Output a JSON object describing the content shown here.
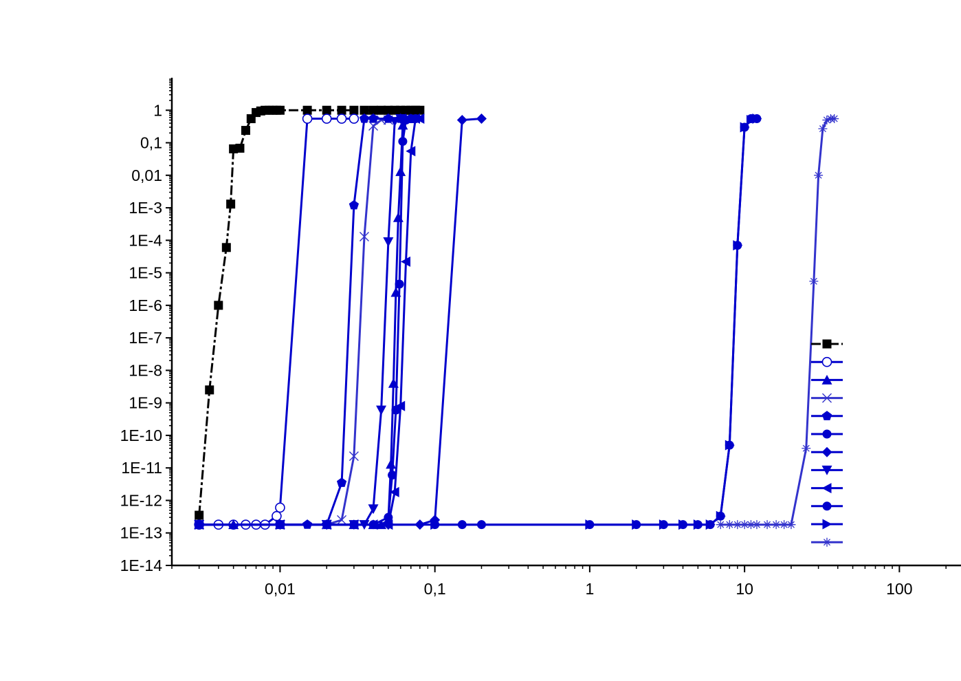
{
  "chart_data": {
    "type": "line",
    "title": "",
    "xlabel": "",
    "ylabel": "",
    "x_scale": "log",
    "y_scale": "log",
    "xlim": [
      0.002,
      250
    ],
    "ylim": [
      1e-14,
      10
    ],
    "x_ticks": [
      {
        "value": 0.01,
        "label": "0,01"
      },
      {
        "value": 0.1,
        "label": "0,1"
      },
      {
        "value": 1,
        "label": "1"
      },
      {
        "value": 10,
        "label": "10"
      },
      {
        "value": 100,
        "label": "100"
      }
    ],
    "y_ticks": [
      {
        "value": 1,
        "label": "1"
      },
      {
        "value": 0.1,
        "label": "0,1"
      },
      {
        "value": 0.01,
        "label": "0,01"
      },
      {
        "value": 0.001,
        "label": "1E-3"
      },
      {
        "value": 0.0001,
        "label": "1E-4"
      },
      {
        "value": 1e-05,
        "label": "1E-5"
      },
      {
        "value": 1e-06,
        "label": "1E-6"
      },
      {
        "value": 1e-07,
        "label": "1E-7"
      },
      {
        "value": 1e-08,
        "label": "1E-8"
      },
      {
        "value": 1e-09,
        "label": "1E-9"
      },
      {
        "value": 1e-10,
        "label": "1E-10"
      },
      {
        "value": 1e-11,
        "label": "1E-11"
      },
      {
        "value": 1e-12,
        "label": "1E-12"
      },
      {
        "value": 1e-13,
        "label": "1E-13"
      },
      {
        "value": 1e-14,
        "label": "1E-14"
      }
    ],
    "grid": false,
    "legend": {
      "position": "right",
      "show_names": false
    },
    "series": [
      {
        "marker": "square",
        "color": "#000000",
        "dashed": true,
        "x": [
          0.003,
          0.0035,
          0.004,
          0.0045,
          0.0048,
          0.005,
          0.0055,
          0.006,
          0.0065,
          0.007,
          0.0075,
          0.008,
          0.0085,
          0.009,
          0.0095,
          0.01,
          0.015,
          0.02,
          0.025,
          0.03,
          0.035,
          0.04,
          0.045,
          0.05,
          0.055,
          0.06,
          0.065,
          0.07,
          0.075,
          0.08
        ],
        "y": [
          3.5e-13,
          2.5e-09,
          1e-06,
          6e-05,
          0.0013,
          0.065,
          0.068,
          0.24,
          0.55,
          0.85,
          0.95,
          1,
          1,
          1,
          1,
          1,
          1,
          1,
          1,
          1,
          1,
          1,
          1,
          1,
          1,
          1,
          1,
          1,
          1,
          1
        ]
      },
      {
        "marker": "circle-open",
        "color": "#0000cc",
        "x": [
          0.003,
          0.004,
          0.005,
          0.006,
          0.007,
          0.008,
          0.0095,
          0.01,
          0.015,
          0.02,
          0.025,
          0.03
        ],
        "y": [
          1.8e-13,
          1.8e-13,
          1.8e-13,
          1.8e-13,
          1.8e-13,
          1.8e-13,
          3.3e-13,
          6e-13,
          0.55,
          0.55,
          0.55,
          0.55
        ]
      },
      {
        "marker": "triangle-up",
        "color": "#0000cc",
        "x": [
          0.003,
          0.005,
          0.01,
          0.02,
          0.03,
          0.04,
          0.045,
          0.05,
          0.052,
          0.054,
          0.056,
          0.058,
          0.06,
          0.062,
          0.065,
          0.07
        ],
        "y": [
          1.8e-13,
          1.8e-13,
          1.8e-13,
          1.8e-13,
          1.8e-13,
          1.8e-13,
          1.8e-13,
          2.5e-13,
          1.3e-11,
          4e-09,
          2.5e-06,
          0.0005,
          0.013,
          0.35,
          0.55,
          0.55
        ]
      },
      {
        "marker": "x",
        "color": "#3333cc",
        "x": [
          0.003,
          0.01,
          0.02,
          0.025,
          0.03,
          0.035,
          0.04,
          0.045,
          0.05
        ],
        "y": [
          1.8e-13,
          1.8e-13,
          1.8e-13,
          2.5e-13,
          2.3e-11,
          0.00013,
          0.33,
          0.5,
          0.5
        ]
      },
      {
        "marker": "pentagon",
        "color": "#0000cc",
        "x": [
          0.003,
          0.01,
          0.015,
          0.02,
          0.025,
          0.03,
          0.035,
          0.04,
          0.05,
          0.06
        ],
        "y": [
          1.8e-13,
          1.8e-13,
          1.8e-13,
          1.8e-13,
          3.5e-12,
          0.0012,
          0.55,
          0.55,
          0.55,
          0.55
        ]
      },
      {
        "marker": "circle",
        "color": "#0000cc",
        "x": [
          0.003,
          0.01,
          0.02,
          0.03,
          0.04,
          0.05,
          0.053,
          0.056,
          0.059,
          0.062,
          0.065,
          0.07,
          0.075
        ],
        "y": [
          1.8e-13,
          1.8e-13,
          1.8e-13,
          1.8e-13,
          1.8e-13,
          3e-13,
          6e-12,
          6e-10,
          4.5e-06,
          0.11,
          0.5,
          0.55,
          0.55
        ]
      },
      {
        "marker": "diamond",
        "color": "#0000cc",
        "x": [
          0.003,
          0.01,
          0.02,
          0.05,
          0.08,
          0.1,
          0.15,
          0.2
        ],
        "y": [
          1.8e-13,
          1.8e-13,
          1.8e-13,
          1.8e-13,
          1.8e-13,
          2.5e-13,
          0.5,
          0.55
        ]
      },
      {
        "marker": "triangle-down",
        "color": "#0000cc",
        "x": [
          0.003,
          0.01,
          0.02,
          0.03,
          0.035,
          0.04,
          0.045,
          0.05,
          0.055,
          0.06
        ],
        "y": [
          1.8e-13,
          1.8e-13,
          1.8e-13,
          1.8e-13,
          1.8e-13,
          5.5e-13,
          6e-10,
          9e-05,
          0.45,
          0.55
        ]
      },
      {
        "marker": "triangle-left",
        "color": "#0000cc",
        "x": [
          0.003,
          0.01,
          0.02,
          0.03,
          0.04,
          0.05,
          0.055,
          0.06,
          0.065,
          0.07,
          0.075,
          0.08
        ],
        "y": [
          1.8e-13,
          1.8e-13,
          1.8e-13,
          1.8e-13,
          1.8e-13,
          1.8e-13,
          1.8e-12,
          8e-10,
          2.2e-05,
          0.055,
          0.55,
          0.55
        ]
      },
      {
        "marker": "circle",
        "color": "#0000cc",
        "x": [
          0.1,
          0.15,
          0.2,
          1,
          2,
          3,
          4,
          5,
          6,
          7,
          8,
          9,
          10,
          11,
          12
        ],
        "y": [
          1.8e-13,
          1.8e-13,
          1.8e-13,
          1.8e-13,
          1.8e-13,
          1.8e-13,
          1.8e-13,
          1.8e-13,
          1.8e-13,
          3.3e-13,
          5e-11,
          7e-05,
          0.3,
          0.55,
          0.55
        ]
      },
      {
        "marker": "triangle-right",
        "color": "#0000cc",
        "x": [
          0.003,
          0.01,
          0.1,
          1,
          2,
          3,
          4,
          5,
          6,
          7,
          8,
          9,
          10,
          11,
          12
        ],
        "y": [
          1.8e-13,
          1.8e-13,
          1.8e-13,
          1.8e-13,
          1.8e-13,
          1.8e-13,
          1.8e-13,
          1.8e-13,
          1.8e-13,
          3.3e-13,
          5e-11,
          7e-05,
          0.3,
          0.5,
          0.55
        ]
      },
      {
        "marker": "asterisk",
        "color": "#3333cc",
        "x": [
          7,
          8,
          9,
          10,
          11,
          12,
          14,
          16,
          18,
          20,
          25,
          28,
          30,
          32,
          34,
          36,
          38
        ],
        "y": [
          1.8e-13,
          1.8e-13,
          1.8e-13,
          1.8e-13,
          1.8e-13,
          1.8e-13,
          1.8e-13,
          1.8e-13,
          1.8e-13,
          1.8e-13,
          4e-11,
          5.5e-06,
          0.01,
          0.27,
          0.5,
          0.55,
          0.55
        ]
      }
    ]
  }
}
